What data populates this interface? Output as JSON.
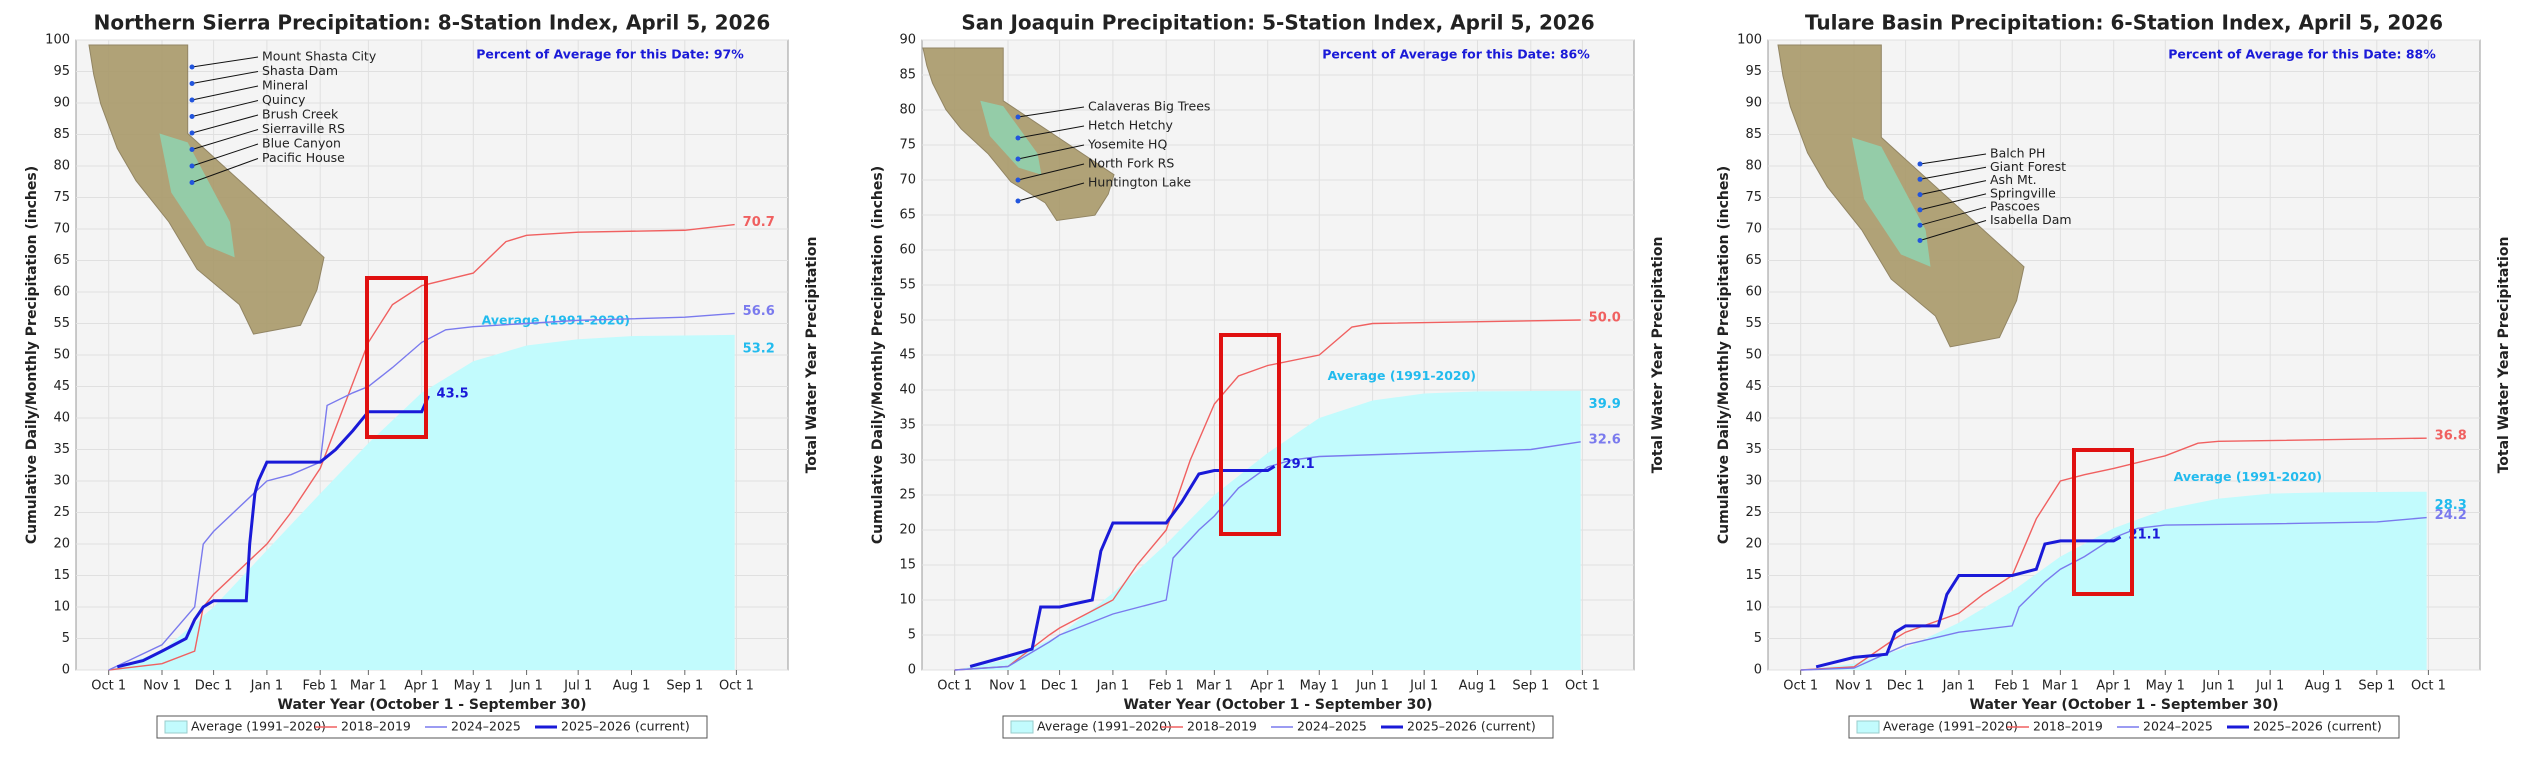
{
  "chart_data": [
    {
      "type": "line",
      "title": "Northern Sierra Precipitation: 8-Station Index, April 5, 2026",
      "annotation": "Percent of Average for this Date: 97%",
      "avg_label": "Average (1991-2020)",
      "stations": [
        "Mount Shasta City",
        "Shasta Dam",
        "Mineral",
        "Quincy",
        "Brush Creek",
        "Sierraville RS",
        "Blue Canyon",
        "Pacific House"
      ],
      "xlabel": "Water Year (October 1 - September 30)",
      "ylabel": "Cumulative Daily/Monthly Precipitation (inches)",
      "y2label": "Total Water Year Precipitation",
      "xlim": [
        -19,
        395
      ],
      "xticks": [
        {
          "value": 0,
          "label": "Oct 1"
        },
        {
          "value": 31,
          "label": "Nov 1"
        },
        {
          "value": 61,
          "label": "Dec 1"
        },
        {
          "value": 92,
          "label": "Jan 1"
        },
        {
          "value": 123,
          "label": "Feb 1"
        },
        {
          "value": 151,
          "label": "Mar 1"
        },
        {
          "value": 182,
          "label": "Apr 1"
        },
        {
          "value": 212,
          "label": "May 1"
        },
        {
          "value": 243,
          "label": "Jun 1"
        },
        {
          "value": 273,
          "label": "Jul 1"
        },
        {
          "value": 304,
          "label": "Aug 1"
        },
        {
          "value": 335,
          "label": "Sep 1"
        },
        {
          "value": 365,
          "label": "Oct 1"
        }
      ],
      "ylim": [
        0,
        100
      ],
      "yticks": [
        0,
        5,
        10,
        15,
        20,
        25,
        30,
        35,
        40,
        45,
        50,
        55,
        60,
        65,
        70,
        75,
        80,
        85,
        90,
        95,
        100
      ],
      "grid": true,
      "series": [
        {
          "name": "Average (1991–2020)",
          "kind": "area",
          "color": "#c2fbfd",
          "label_color": "#22bbee",
          "x": [
            0,
            31,
            61,
            92,
            123,
            151,
            182,
            212,
            243,
            273,
            304,
            335,
            364
          ],
          "values": [
            0,
            3,
            10,
            19,
            28,
            36,
            44,
            49,
            51.5,
            52.5,
            53,
            53.1,
            53.2
          ],
          "end_label": "53.2"
        },
        {
          "name": "2018–2019",
          "kind": "line",
          "color": "#f06060",
          "x": [
            0,
            31,
            50,
            55,
            61,
            92,
            106,
            123,
            137,
            151,
            165,
            182,
            212,
            231,
            243,
            273,
            335,
            364
          ],
          "values": [
            0,
            1,
            3,
            10,
            12,
            20,
            25,
            32,
            42,
            52,
            58,
            61,
            63,
            68,
            69,
            69.5,
            69.8,
            70.7
          ],
          "end_label": "70.7"
        },
        {
          "name": "2024–2025",
          "kind": "line",
          "color": "#7a7aee",
          "x": [
            0,
            31,
            50,
            55,
            61,
            92,
            106,
            123,
            127,
            142,
            151,
            165,
            182,
            196,
            212,
            243,
            273,
            335,
            364
          ],
          "values": [
            0,
            4,
            10,
            20,
            22,
            30,
            31,
            33,
            42,
            44,
            45,
            48,
            52,
            54,
            54.5,
            55,
            55.5,
            56,
            56.6
          ],
          "end_label": "56.6"
        },
        {
          "name": "2025–2026 (current)",
          "kind": "bold",
          "color": "#1a1ad8",
          "x": [
            5,
            20,
            31,
            45,
            50,
            55,
            61,
            80,
            82,
            85,
            87,
            92,
            123,
            132,
            142,
            151,
            165,
            182,
            186
          ],
          "values": [
            0.5,
            1.5,
            3,
            5,
            8,
            10,
            11,
            11,
            20,
            28,
            30,
            33,
            33,
            35,
            38,
            41,
            41,
            41,
            43.5
          ],
          "end_label": "43.5"
        }
      ]
    },
    {
      "type": "line",
      "title": "San Joaquin Precipitation: 5-Station Index, April 5, 2026",
      "annotation": "Percent of Average for this Date: 86%",
      "avg_label": "Average (1991-2020)",
      "stations": [
        "Calaveras Big Trees",
        "Hetch Hetchy",
        "Yosemite HQ",
        "North Fork RS",
        "Huntington Lake"
      ],
      "xlabel": "Water Year (October 1 - September 30)",
      "ylabel": "Cumulative Daily/Monthly Precipitation (inches)",
      "y2label": "Total Water Year Precipitation",
      "xlim": [
        -19,
        395
      ],
      "xticks": [
        {
          "value": 0,
          "label": "Oct 1"
        },
        {
          "value": 31,
          "label": "Nov 1"
        },
        {
          "value": 61,
          "label": "Dec 1"
        },
        {
          "value": 92,
          "label": "Jan 1"
        },
        {
          "value": 123,
          "label": "Feb 1"
        },
        {
          "value": 151,
          "label": "Mar 1"
        },
        {
          "value": 182,
          "label": "Apr 1"
        },
        {
          "value": 212,
          "label": "May 1"
        },
        {
          "value": 243,
          "label": "Jun 1"
        },
        {
          "value": 273,
          "label": "Jul 1"
        },
        {
          "value": 304,
          "label": "Aug 1"
        },
        {
          "value": 335,
          "label": "Sep 1"
        },
        {
          "value": 365,
          "label": "Oct 1"
        }
      ],
      "ylim": [
        0,
        90
      ],
      "yticks": [
        0,
        5,
        10,
        15,
        20,
        25,
        30,
        35,
        40,
        45,
        50,
        55,
        60,
        65,
        70,
        75,
        80,
        85,
        90
      ],
      "grid": true,
      "series": [
        {
          "name": "Average (1991–2020)",
          "kind": "area",
          "color": "#c2fbfd",
          "label_color": "#22bbee",
          "x": [
            0,
            31,
            61,
            92,
            123,
            151,
            182,
            212,
            243,
            273,
            304,
            335,
            364
          ],
          "values": [
            0,
            1.5,
            5,
            11,
            18,
            25,
            31,
            36,
            38.5,
            39.5,
            39.8,
            39.85,
            39.9
          ],
          "end_label": "39.9"
        },
        {
          "name": "2018–2019",
          "kind": "line",
          "color": "#f06060",
          "x": [
            0,
            31,
            55,
            61,
            92,
            106,
            123,
            137,
            151,
            165,
            182,
            212,
            231,
            243,
            364
          ],
          "values": [
            0,
            0.5,
            5,
            6,
            10,
            15,
            20,
            30,
            38,
            42,
            43.5,
            45,
            49,
            49.5,
            50
          ],
          "end_label": "50.0"
        },
        {
          "name": "2024–2025",
          "kind": "line",
          "color": "#7a7aee",
          "x": [
            0,
            31,
            55,
            61,
            92,
            123,
            127,
            142,
            151,
            165,
            182,
            196,
            212,
            273,
            335,
            364
          ],
          "values": [
            0,
            0.5,
            4,
            5,
            8,
            10,
            16,
            20,
            22,
            26,
            29,
            30,
            30.5,
            31,
            31.5,
            32.6
          ],
          "end_label": "32.6"
        },
        {
          "name": "2025–2026 (current)",
          "kind": "bold",
          "color": "#1a1ad8",
          "x": [
            9,
            31,
            45,
            50,
            61,
            80,
            85,
            92,
            123,
            132,
            142,
            151,
            182,
            186
          ],
          "values": [
            0.5,
            2,
            3,
            9,
            9,
            10,
            17,
            21,
            21,
            24,
            28,
            28.5,
            28.5,
            29.1
          ],
          "end_label": "29.1"
        }
      ]
    },
    {
      "type": "line",
      "title": "Tulare Basin Precipitation: 6-Station Index, April 5, 2026",
      "annotation": "Percent of Average for this Date: 88%",
      "avg_label": "Average (1991-2020)",
      "stations": [
        "Balch PH",
        "Giant Forest",
        "Ash Mt.",
        "Springville",
        "Pascoes",
        "Isabella Dam"
      ],
      "xlabel": "Water Year (October 1 - September 30)",
      "ylabel": "Cumulative Daily/Monthly Precipitation (inches)",
      "y2label": "Total Water Year Precipitation",
      "xlim": [
        -19,
        395
      ],
      "xticks": [
        {
          "value": 0,
          "label": "Oct 1"
        },
        {
          "value": 31,
          "label": "Nov 1"
        },
        {
          "value": 61,
          "label": "Dec 1"
        },
        {
          "value": 92,
          "label": "Jan 1"
        },
        {
          "value": 123,
          "label": "Feb 1"
        },
        {
          "value": 151,
          "label": "Mar 1"
        },
        {
          "value": 182,
          "label": "Apr 1"
        },
        {
          "value": 212,
          "label": "May 1"
        },
        {
          "value": 243,
          "label": "Jun 1"
        },
        {
          "value": 273,
          "label": "Jul 1"
        },
        {
          "value": 304,
          "label": "Aug 1"
        },
        {
          "value": 335,
          "label": "Sep 1"
        },
        {
          "value": 365,
          "label": "Oct 1"
        }
      ],
      "ylim": [
        0,
        100
      ],
      "yticks": [
        0,
        5,
        10,
        15,
        20,
        25,
        30,
        35,
        40,
        45,
        50,
        55,
        60,
        65,
        70,
        75,
        80,
        85,
        90,
        95,
        100
      ],
      "grid": true,
      "series": [
        {
          "name": "Average (1991–2020)",
          "kind": "area",
          "color": "#c2fbfd",
          "label_color": "#22bbee",
          "x": [
            0,
            31,
            61,
            92,
            123,
            151,
            182,
            212,
            243,
            273,
            304,
            335,
            364
          ],
          "values": [
            0,
            1,
            3.5,
            7.5,
            12.5,
            18,
            22.5,
            25.5,
            27.2,
            28,
            28.2,
            28.25,
            28.3
          ],
          "end_label": "28.3"
        },
        {
          "name": "2018–2019",
          "kind": "line",
          "color": "#f06060",
          "x": [
            0,
            31,
            55,
            61,
            92,
            106,
            123,
            137,
            151,
            165,
            182,
            212,
            231,
            243,
            364
          ],
          "values": [
            0,
            0.5,
            5,
            6,
            9,
            12,
            15,
            24,
            30,
            31,
            32,
            34,
            36,
            36.3,
            36.8
          ],
          "end_label": "36.8"
        },
        {
          "name": "2024–2025",
          "kind": "line",
          "color": "#7a7aee",
          "x": [
            0,
            31,
            61,
            92,
            123,
            127,
            142,
            151,
            165,
            182,
            196,
            212,
            273,
            335,
            364
          ],
          "values": [
            0,
            0.3,
            4,
            6,
            7,
            10,
            14,
            16,
            18,
            21,
            22.5,
            23,
            23.2,
            23.5,
            24.2
          ],
          "end_label": "24.2"
        },
        {
          "name": "2025–2026 (current)",
          "kind": "bold",
          "color": "#1a1ad8",
          "x": [
            9,
            31,
            50,
            55,
            61,
            80,
            85,
            92,
            123,
            137,
            142,
            151,
            182,
            186
          ],
          "values": [
            0.5,
            2,
            2.5,
            6,
            7,
            7,
            12,
            15,
            15,
            16,
            20,
            20.5,
            20.5,
            21.1
          ],
          "end_label": "21.1"
        }
      ]
    }
  ]
}
